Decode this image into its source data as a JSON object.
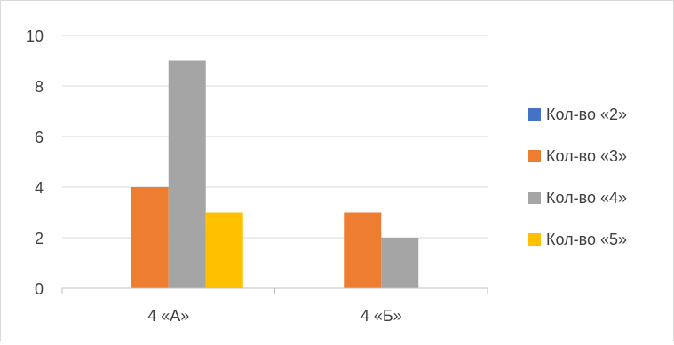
{
  "chart_data": {
    "type": "bar",
    "categories": [
      "4 «А»",
      "4 «Б»"
    ],
    "series": [
      {
        "name": "Кол-во «2»",
        "color": "#4472C4",
        "values": [
          0,
          0
        ]
      },
      {
        "name": "Кол-во «3»",
        "color": "#ED7D31",
        "values": [
          4,
          3
        ]
      },
      {
        "name": "Кол-во «4»",
        "color": "#A5A5A5",
        "values": [
          9,
          2
        ]
      },
      {
        "name": "Кол-во «5»",
        "color": "#FFC000",
        "values": [
          3,
          0
        ]
      }
    ],
    "ylim": [
      0,
      10
    ],
    "yticks": [
      0,
      2,
      4,
      6,
      8,
      10
    ],
    "grid": true,
    "legend_position": "right",
    "gridline_color": "#d9d9d9",
    "axis_line_color": "#bfbfbf",
    "text_color": "#404040"
  }
}
